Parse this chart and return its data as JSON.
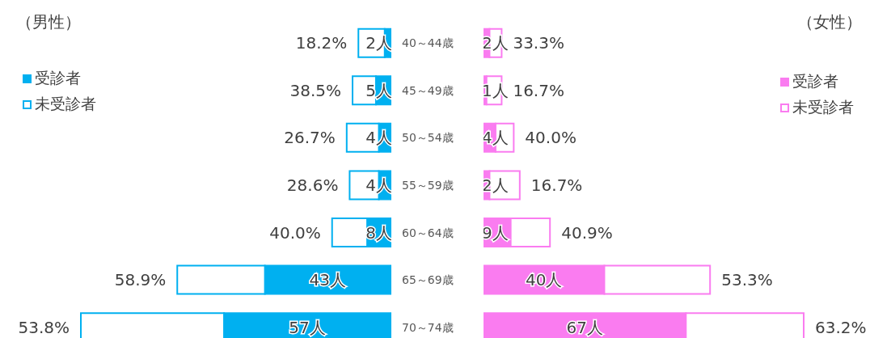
{
  "chart_data": [
    {
      "type": "bar",
      "orientation": "horizontal",
      "stacked": true,
      "title": "（男性）",
      "categories": [
        "40～44歳",
        "45～49歳",
        "50～54歳",
        "55～59歳",
        "60～64歳",
        "65～69歳",
        "70～74歳"
      ],
      "legend": "top left",
      "tick_labels": "y",
      "annotations": [
        "18.2%",
        "38.5%",
        "26.7%",
        "28.6%",
        "40.0%",
        "58.9%",
        "53.8%"
      ],
      "series": [
        {
          "name": "受診者",
          "color": "#00b0f0",
          "values": [
            2,
            5,
            4,
            4,
            8,
            43,
            57
          ],
          "value_labels": [
            "2人",
            "5人",
            "4人",
            "4人",
            "8人",
            "43人",
            "57人"
          ]
        },
        {
          "name": "未受診者",
          "color": "#00b0f0",
          "values": [
            9,
            8,
            11,
            10,
            12,
            30,
            49
          ]
        }
      ]
    },
    {
      "type": "bar",
      "orientation": "horizontal",
      "stacked": true,
      "title": "（女性）",
      "legend": "top right",
      "tick_labels": false,
      "annotations": [
        "33.3%",
        "16.7%",
        "40.0%",
        "16.7%",
        "40.9%",
        "53.3%",
        "63.2%"
      ],
      "series": [
        {
          "name": "受診者",
          "color": "#fa7cf0",
          "values": [
            2,
            1,
            4,
            2,
            9,
            40,
            67
          ],
          "value_labels": [
            "2人",
            "1人",
            "4人",
            "2人",
            "9人",
            "40人",
            "67人"
          ]
        },
        {
          "name": "未受診者",
          "color": "#fa7cf0",
          "values": [
            4,
            5,
            6,
            10,
            13,
            35,
            39
          ]
        }
      ]
    }
  ]
}
